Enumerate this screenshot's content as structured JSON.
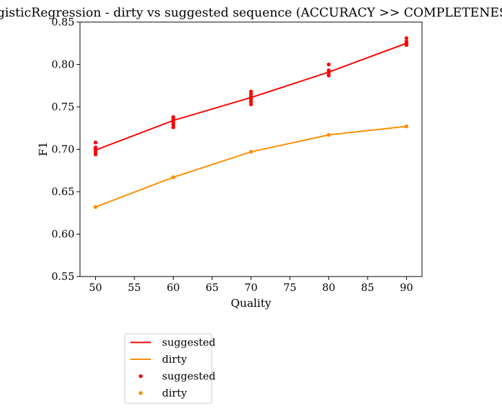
{
  "chart_data": {
    "type": "line",
    "title": "LogisticRegression - dirty vs suggested sequence (ACCURACY >> COMPLETENESS)",
    "xlabel": "Quality",
    "ylabel": "F1",
    "xlim": [
      48,
      92
    ],
    "ylim": [
      0.55,
      0.85
    ],
    "x_ticks": [
      50,
      55,
      60,
      65,
      70,
      75,
      80,
      85,
      90
    ],
    "y_ticks": [
      0.55,
      0.6,
      0.65,
      0.7,
      0.75,
      0.8,
      0.85
    ],
    "grid": false,
    "legend_placement": "below-left",
    "x": [
      50,
      60,
      70,
      80,
      90
    ],
    "series": [
      {
        "name": "suggested",
        "kind": "line",
        "color": "#ff0000",
        "values": [
          0.699,
          0.734,
          0.761,
          0.791,
          0.825
        ]
      },
      {
        "name": "dirty",
        "kind": "line",
        "color": "#ff8c00",
        "values": [
          0.632,
          0.667,
          0.697,
          0.717,
          0.727
        ]
      },
      {
        "name": "suggested",
        "kind": "scatter",
        "color": "#ff0000",
        "points": [
          [
            50,
            0.708
          ],
          [
            50,
            0.702
          ],
          [
            50,
            0.7
          ],
          [
            50,
            0.697
          ],
          [
            50,
            0.694
          ],
          [
            60,
            0.738
          ],
          [
            60,
            0.735
          ],
          [
            60,
            0.732
          ],
          [
            60,
            0.729
          ],
          [
            60,
            0.726
          ],
          [
            70,
            0.768
          ],
          [
            70,
            0.765
          ],
          [
            70,
            0.762
          ],
          [
            70,
            0.759
          ],
          [
            70,
            0.756
          ],
          [
            70,
            0.753
          ],
          [
            80,
            0.8
          ],
          [
            80,
            0.793
          ],
          [
            80,
            0.79
          ],
          [
            80,
            0.787
          ],
          [
            90,
            0.831
          ],
          [
            90,
            0.827
          ],
          [
            90,
            0.825
          ],
          [
            90,
            0.823
          ]
        ]
      },
      {
        "name": "dirty",
        "kind": "scatter",
        "color": "#ff8c00",
        "points": [
          [
            50,
            0.632
          ],
          [
            60,
            0.667
          ],
          [
            70,
            0.697
          ],
          [
            80,
            0.717
          ],
          [
            90,
            0.727
          ]
        ]
      }
    ]
  }
}
